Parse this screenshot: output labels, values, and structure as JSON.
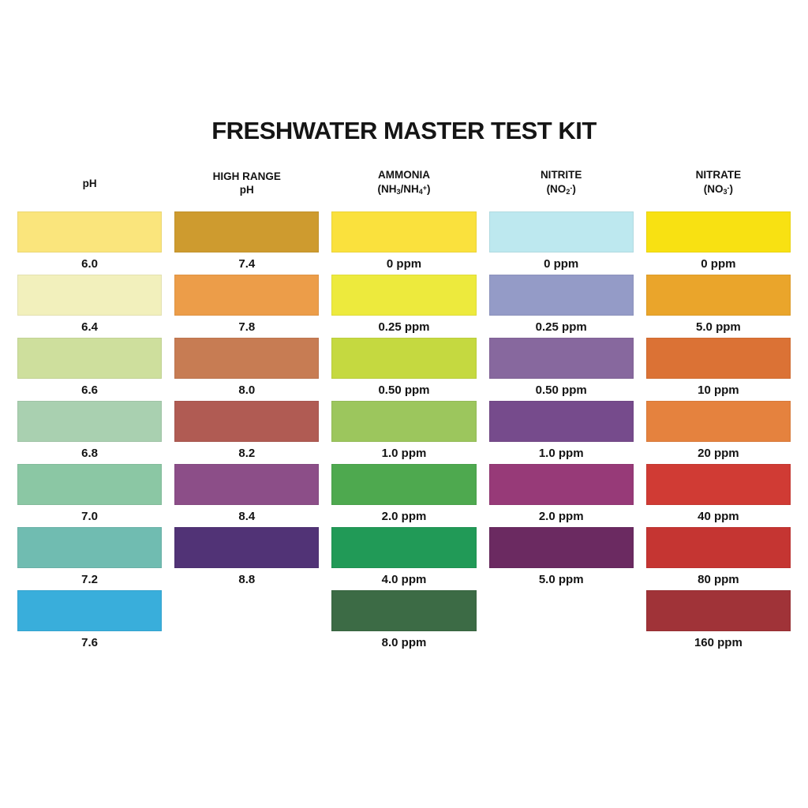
{
  "title": "FRESHWATER MASTER TEST KIT",
  "chart_data": {
    "type": "table",
    "title": "FRESHWATER MASTER TEST KIT",
    "description_layout": "5 columns of color swatches, each swatch with a value label beneath",
    "columns": [
      {
        "id": "ph",
        "name": "pH",
        "header_lines": [
          "pH"
        ],
        "entries": [
          {
            "value": "6.0",
            "color": "#FAE57C"
          },
          {
            "value": "6.4",
            "color": "#F2F0BC"
          },
          {
            "value": "6.6",
            "color": "#CEDF9D"
          },
          {
            "value": "6.8",
            "color": "#A9D0B0"
          },
          {
            "value": "7.0",
            "color": "#8BC7A4"
          },
          {
            "value": "7.2",
            "color": "#70BCB1"
          },
          {
            "value": "7.6",
            "color": "#39AEDB"
          }
        ]
      },
      {
        "id": "high-range-ph",
        "name": "HIGH RANGE pH",
        "header_lines": [
          "HIGH RANGE",
          "pH"
        ],
        "entries": [
          {
            "value": "7.4",
            "color": "#CE9B2F"
          },
          {
            "value": "7.8",
            "color": "#EC9D49"
          },
          {
            "value": "8.0",
            "color": "#C77C53"
          },
          {
            "value": "8.2",
            "color": "#B05B53"
          },
          {
            "value": "8.4",
            "color": "#8C4E88"
          },
          {
            "value": "8.8",
            "color": "#513376"
          }
        ]
      },
      {
        "id": "ammonia",
        "name": "AMMONIA (NH3/NH4+)",
        "header_lines": [
          "AMMONIA",
          "(NH~3~/NH~4~^+^)"
        ],
        "entries": [
          {
            "value": "0 ppm",
            "color": "#FAE13D"
          },
          {
            "value": "0.25 ppm",
            "color": "#EDEA3D"
          },
          {
            "value": "0.50 ppm",
            "color": "#C5D940"
          },
          {
            "value": "1.0 ppm",
            "color": "#9CC65D"
          },
          {
            "value": "2.0 ppm",
            "color": "#4EA94F"
          },
          {
            "value": "4.0 ppm",
            "color": "#219A57"
          },
          {
            "value": "8.0 ppm",
            "color": "#3C6B45"
          }
        ]
      },
      {
        "id": "nitrite",
        "name": "NITRITE (NO2-)",
        "header_lines": [
          "NITRITE",
          "(NO~2~^-^)"
        ],
        "entries": [
          {
            "value": "0 ppm",
            "color": "#BDE8EF"
          },
          {
            "value": "0.25 ppm",
            "color": "#949BC7"
          },
          {
            "value": "0.50 ppm",
            "color": "#87689E"
          },
          {
            "value": "1.0 ppm",
            "color": "#764B8C"
          },
          {
            "value": "2.0 ppm",
            "color": "#973A78"
          },
          {
            "value": "5.0 ppm",
            "color": "#6B2A61"
          }
        ]
      },
      {
        "id": "nitrate",
        "name": "NITRATE (NO3-)",
        "header_lines": [
          "NITRATE",
          "(NO~3~^-^)"
        ],
        "entries": [
          {
            "value": "0 ppm",
            "color": "#F8E112"
          },
          {
            "value": "5.0 ppm",
            "color": "#EAA52B"
          },
          {
            "value": "10 ppm",
            "color": "#DB7235"
          },
          {
            "value": "20 ppm",
            "color": "#E5823E"
          },
          {
            "value": "40 ppm",
            "color": "#D03B34"
          },
          {
            "value": "80 ppm",
            "color": "#C53532"
          },
          {
            "value": "160 ppm",
            "color": "#A03338"
          }
        ]
      }
    ]
  }
}
